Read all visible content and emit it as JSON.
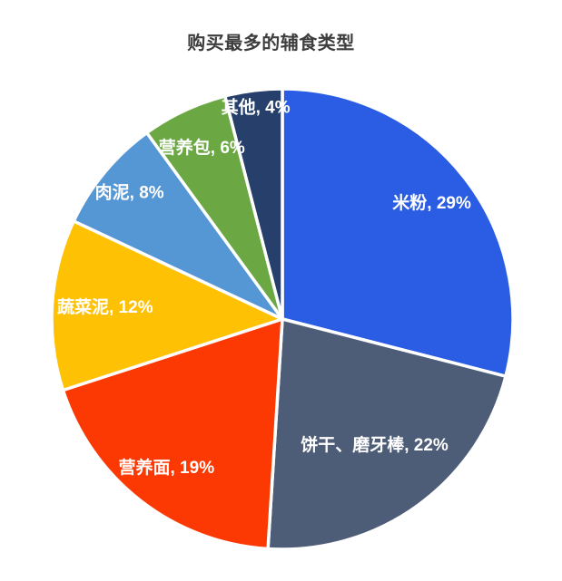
{
  "page": {
    "background_color": "#ffffff"
  },
  "chart_data": {
    "type": "pie",
    "title": "购买最多的辅食类型",
    "title_color": "#3d3d3d",
    "start_angle_deg": 0,
    "direction": "clockwise",
    "legend": "none",
    "label_position": "inside",
    "label_format": "{name}, {value}%",
    "label_color": "#ffffff",
    "divider_color": "#ffffff",
    "total": 100,
    "slices": [
      {
        "name": "米粉",
        "value": 29,
        "color": "#2b5de4",
        "label_radius_fraction": 0.82
      },
      {
        "name": "饼干、磨牙棒",
        "value": 22,
        "color": "#4d5c77",
        "label_radius_fraction": 0.68
      },
      {
        "name": "营养面",
        "value": 19,
        "color": "#fc3903",
        "label_radius_fraction": 0.82
      },
      {
        "name": "蔬菜泥",
        "value": 12,
        "color": "#ffc103",
        "label_radius_fraction": 0.77
      },
      {
        "name": "肉泥",
        "value": 8,
        "color": "#5596d5",
        "label_radius_fraction": 0.86
      },
      {
        "name": "营养包",
        "value": 6,
        "color": "#6ba844",
        "label_radius_fraction": 0.82
      },
      {
        "name": "其他",
        "value": 4,
        "color": "#263f6b",
        "label_radius_fraction": 0.925
      }
    ]
  }
}
